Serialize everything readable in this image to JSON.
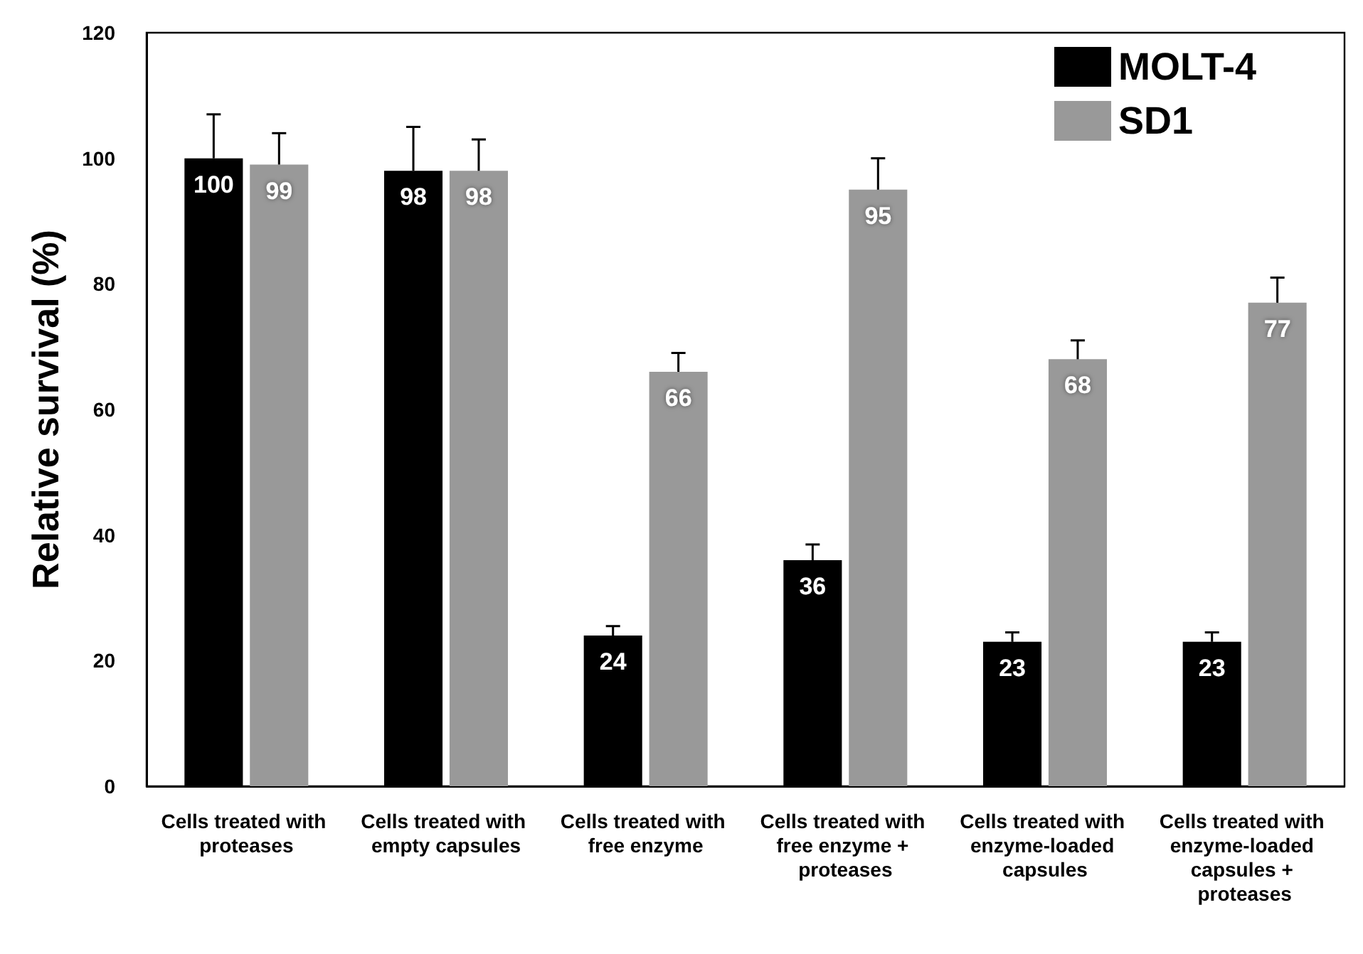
{
  "chart_data": {
    "type": "bar",
    "ylabel": "Relative survival (%)",
    "categories": [
      "Cells treated with proteases",
      "Cells treated with empty capsules",
      "Cells treated with free enzyme",
      "Cells treated with free enzyme + proteases",
      "Cells treated with enzyme-loaded capsules",
      "Cells treated with enzyme-loaded capsules + proteases"
    ],
    "series": [
      {
        "name": "MOLT-4",
        "color": "#000000",
        "values": [
          100,
          98,
          24,
          36,
          23,
          23
        ],
        "errors": [
          7,
          7,
          1.5,
          2.5,
          1.5,
          1.5
        ]
      },
      {
        "name": "SD1",
        "color": "#999999",
        "values": [
          99,
          98,
          66,
          95,
          68,
          77
        ],
        "errors": [
          5,
          5,
          3,
          5,
          3,
          4
        ]
      }
    ],
    "ylim": [
      0,
      120
    ],
    "yticks": [
      0,
      20,
      40,
      60,
      80,
      100,
      120
    ],
    "grid": false,
    "legend": "top right",
    "data_labels": true
  }
}
